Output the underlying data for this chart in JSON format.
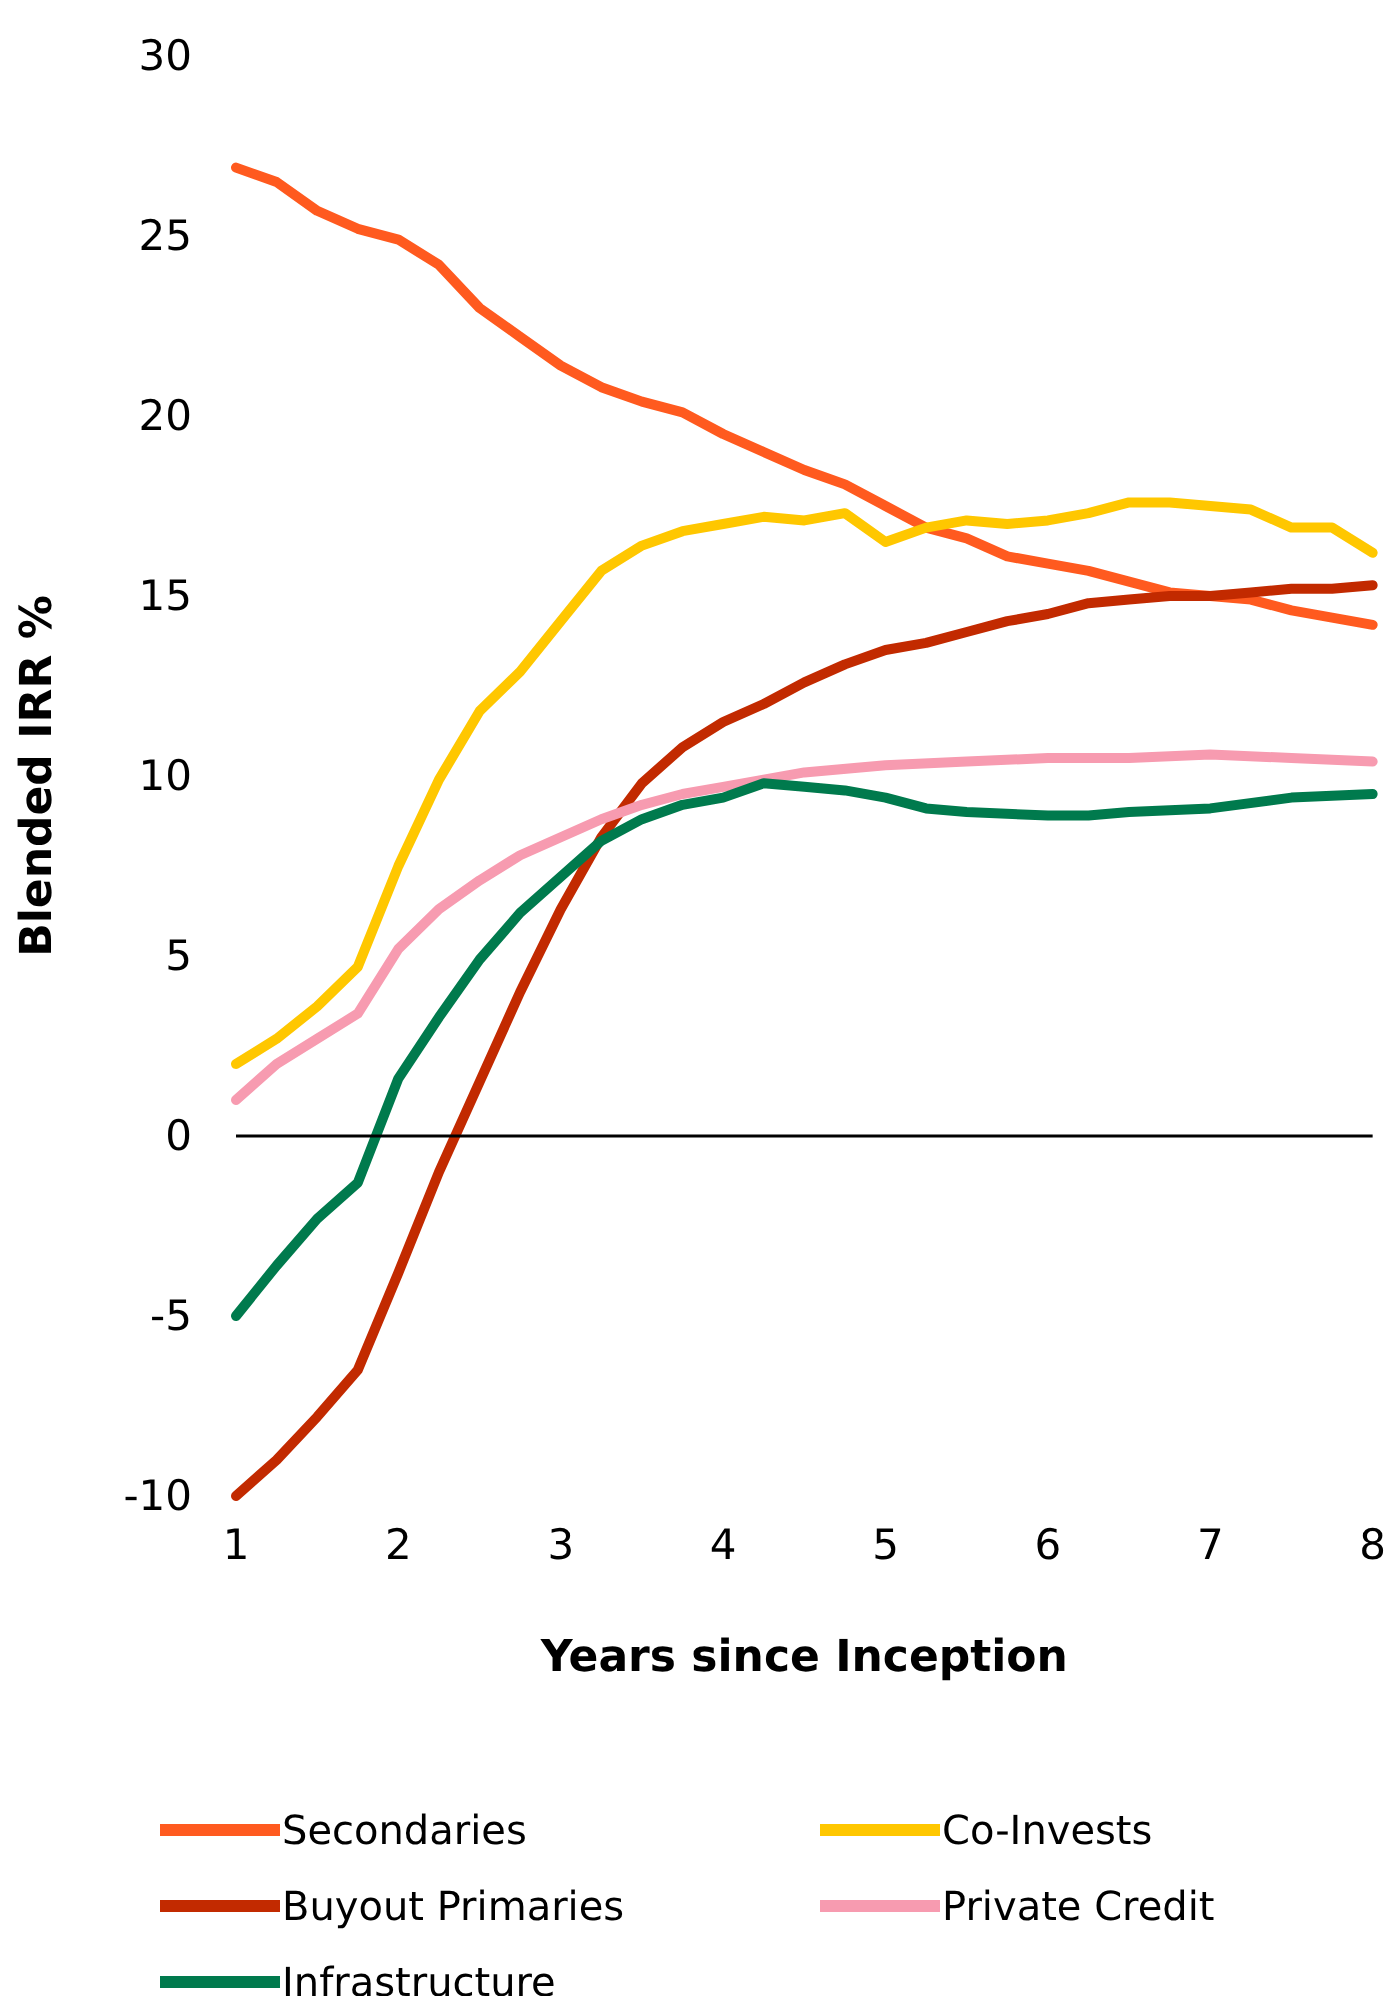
{
  "chart_data": {
    "type": "line",
    "xlabel": "Years since Inception",
    "ylabel": "Blended IRR %",
    "xlim": [
      1,
      8
    ],
    "xticks": [
      1,
      2,
      3,
      4,
      5,
      6,
      7,
      8
    ],
    "ylim": [
      -10,
      30
    ],
    "yticks": [
      -10,
      -5,
      0,
      5,
      10,
      15,
      20,
      25,
      30
    ],
    "grid": false,
    "legend": "bottom",
    "marker": "none",
    "line_style": "solid",
    "ref_lines": [
      {
        "axis": "y",
        "value": 0,
        "color": "#000000"
      }
    ],
    "series": [
      {
        "name": "Secondaries",
        "color": "#ff5a1f",
        "x": [
          1,
          1.25,
          1.5,
          1.75,
          2,
          2.25,
          2.5,
          2.75,
          3,
          3.25,
          3.5,
          3.75,
          4,
          4.25,
          4.5,
          4.75,
          5,
          5.25,
          5.5,
          5.75,
          6,
          6.25,
          6.5,
          6.75,
          7,
          7.25,
          7.5,
          7.75,
          8
        ],
        "values": [
          26.9,
          26.5,
          25.7,
          25.2,
          24.9,
          24.2,
          23,
          22.2,
          21.4,
          20.8,
          20.4,
          20.1,
          19.5,
          19,
          18.5,
          18.1,
          17.5,
          16.9,
          16.6,
          16.1,
          15.9,
          15.7,
          15.4,
          15.1,
          15,
          14.9,
          14.6,
          14.4,
          14.2
        ]
      },
      {
        "name": "Co-Invests",
        "color": "#ffc700",
        "x": [
          1,
          1.25,
          1.5,
          1.75,
          2,
          2.25,
          2.5,
          2.75,
          3,
          3.25,
          3.5,
          3.75,
          4,
          4.25,
          4.5,
          4.75,
          5,
          5.25,
          5.5,
          5.75,
          6,
          6.25,
          6.5,
          6.75,
          7,
          7.25,
          7.5,
          7.75,
          8
        ],
        "values": [
          2,
          2.7,
          3.6,
          4.7,
          7.5,
          9.9,
          11.8,
          12.9,
          14.3,
          15.7,
          16.4,
          16.8,
          17,
          17.2,
          17.1,
          17.3,
          16.5,
          16.9,
          17.1,
          17,
          17.1,
          17.3,
          17.6,
          17.6,
          17.5,
          17.4,
          16.9,
          16.9,
          16.2
        ]
      },
      {
        "name": "Buyout Primaries",
        "color": "#c22a00",
        "x": [
          1,
          1.25,
          1.5,
          1.75,
          2,
          2.25,
          2.5,
          2.75,
          3,
          3.25,
          3.5,
          3.75,
          4,
          4.25,
          4.5,
          4.75,
          5,
          5.25,
          5.5,
          5.75,
          6,
          6.25,
          6.5,
          6.75,
          7,
          7.25,
          7.5,
          7.75,
          8
        ],
        "values": [
          -10,
          -9,
          -7.8,
          -6.5,
          -3.8,
          -1,
          1.5,
          4,
          6.3,
          8.3,
          9.8,
          10.8,
          11.5,
          12,
          12.6,
          13.1,
          13.5,
          13.7,
          14,
          14.3,
          14.5,
          14.8,
          14.9,
          15,
          15,
          15.1,
          15.2,
          15.2,
          15.3
        ]
      },
      {
        "name": "Private Credit",
        "color": "#f79bb0",
        "x": [
          1,
          1.25,
          1.5,
          1.75,
          2,
          2.25,
          2.5,
          2.75,
          3,
          3.25,
          3.5,
          3.75,
          4,
          4.25,
          4.5,
          5,
          5.5,
          6,
          6.5,
          7,
          7.5,
          8
        ],
        "values": [
          1,
          2,
          2.7,
          3.4,
          5.2,
          6.3,
          7.1,
          7.8,
          8.3,
          8.8,
          9.2,
          9.5,
          9.7,
          9.9,
          10.1,
          10.3,
          10.4,
          10.5,
          10.5,
          10.6,
          10.5,
          10.4
        ]
      },
      {
        "name": "Infrastructure",
        "color": "#007a4d",
        "x": [
          1,
          1.25,
          1.5,
          1.75,
          2,
          2.25,
          2.5,
          2.75,
          3,
          3.25,
          3.5,
          3.75,
          4,
          4.25,
          4.5,
          4.75,
          5,
          5.25,
          5.5,
          6,
          6.25,
          6.5,
          7,
          7.5,
          8
        ],
        "values": [
          -5,
          -3.6,
          -2.3,
          -1.3,
          1.6,
          3.3,
          4.9,
          6.2,
          7.2,
          8.2,
          8.8,
          9.2,
          9.4,
          9.8,
          9.7,
          9.6,
          9.4,
          9.1,
          9,
          8.9,
          8.9,
          9,
          9.1,
          9.4,
          9.5
        ]
      }
    ]
  }
}
